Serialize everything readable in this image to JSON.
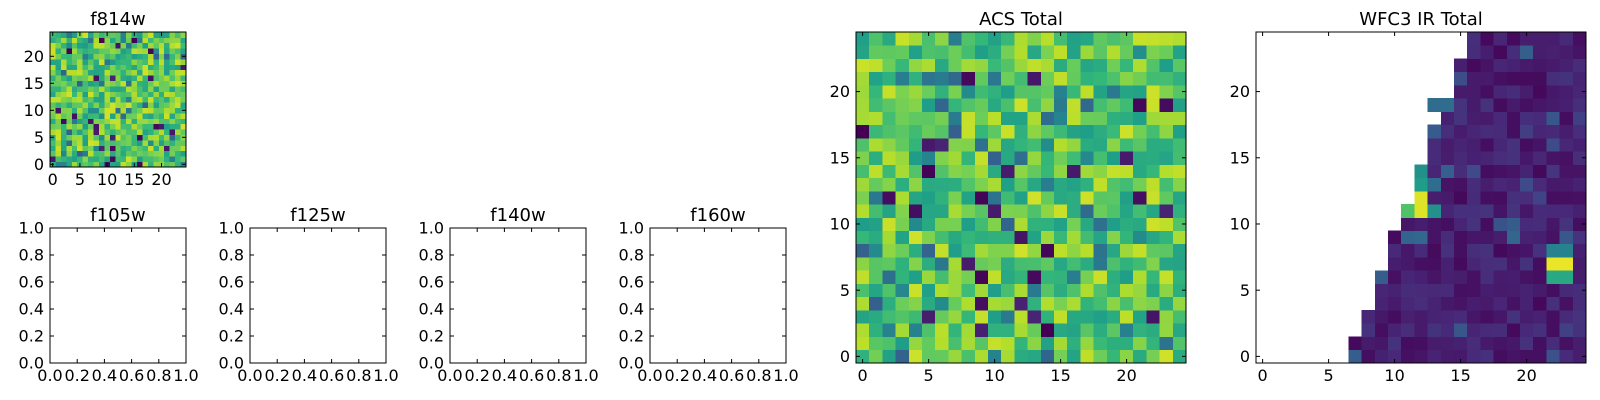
{
  "colors": {
    "axis": "#000000",
    "background": "#ffffff",
    "colormap": "viridis"
  },
  "chart_data": [
    {
      "id": "f814w",
      "type": "heatmap",
      "title": "f814w",
      "xlabel": "",
      "ylabel": "",
      "grid_size": [
        25,
        25
      ],
      "xlim": [
        -0.5,
        24.5
      ],
      "ylim": [
        -0.5,
        24.5
      ],
      "xticks": [
        0,
        5,
        10,
        15,
        20
      ],
      "yticks": [
        0,
        5,
        10,
        15,
        20
      ],
      "value_range": [
        0.0,
        1.0
      ],
      "seed": 11,
      "values": "noisy field, mostly 0.55-0.9 (green-yellow), occasional low-value dark pixels"
    },
    {
      "id": "f105w",
      "type": "empty",
      "title": "f105w",
      "xlim": [
        0,
        1
      ],
      "ylim": [
        0,
        1
      ],
      "xticks": [
        "0.0",
        "0.2",
        "0.4",
        "0.6",
        "0.8",
        "1.0"
      ],
      "yticks": [
        "0.0",
        "0.2",
        "0.4",
        "0.6",
        "0.8",
        "1.0"
      ]
    },
    {
      "id": "f125w",
      "type": "empty",
      "title": "f125w",
      "xlim": [
        0,
        1
      ],
      "ylim": [
        0,
        1
      ],
      "xticks": [
        "0.0",
        "0.2",
        "0.4",
        "0.6",
        "0.8",
        "1.0"
      ],
      "yticks": [
        "0.0",
        "0.2",
        "0.4",
        "0.6",
        "0.8",
        "1.0"
      ]
    },
    {
      "id": "f140w",
      "type": "empty",
      "title": "f140w",
      "xlim": [
        0,
        1
      ],
      "ylim": [
        0,
        1
      ],
      "xticks": [
        "0.0",
        "0.2",
        "0.4",
        "0.6",
        "0.8",
        "1.0"
      ],
      "yticks": [
        "0.0",
        "0.2",
        "0.4",
        "0.6",
        "0.8",
        "1.0"
      ]
    },
    {
      "id": "f160w",
      "type": "empty",
      "title": "f160w",
      "xlim": [
        0,
        1
      ],
      "ylim": [
        0,
        1
      ],
      "xticks": [
        "0.0",
        "0.2",
        "0.4",
        "0.6",
        "0.8",
        "1.0"
      ],
      "yticks": [
        "0.0",
        "0.2",
        "0.4",
        "0.6",
        "0.8",
        "1.0"
      ]
    },
    {
      "id": "acs-total",
      "type": "heatmap",
      "title": "ACS Total",
      "grid_size": [
        25,
        25
      ],
      "xlim": [
        -0.5,
        24.5
      ],
      "ylim": [
        -0.5,
        24.5
      ],
      "xticks": [
        0,
        5,
        10,
        15,
        20
      ],
      "yticks": [
        0,
        5,
        10,
        15,
        20
      ],
      "value_range": [
        0.0,
        1.0
      ],
      "seed": 7,
      "values": "noisy field, mostly 0.55-0.9 (green-yellow), occasional low-value dark pixels"
    },
    {
      "id": "wfc3-ir-total",
      "type": "heatmap",
      "title": "WFC3 IR Total",
      "grid_size": [
        25,
        25
      ],
      "xlim": [
        -0.5,
        24.5
      ],
      "ylim": [
        -0.5,
        24.5
      ],
      "xticks": [
        0,
        5,
        10,
        15,
        20
      ],
      "yticks": [
        0,
        5,
        10,
        15,
        20
      ],
      "value_range": [
        0.0,
        1.0
      ],
      "seed": 3,
      "values": "NaN (blank) left of a diagonal boundary running from x~7 at y=0 to x~16 at y=24; valid region mostly 0.0-0.15 (dark purple)",
      "hotspots": [
        {
          "x": 12,
          "y": 12,
          "value": 0.95
        },
        {
          "x": 12,
          "y": 11,
          "value": 0.95
        },
        {
          "x": 12,
          "y": 13,
          "value": 0.55
        },
        {
          "x": 12,
          "y": 14,
          "value": 0.5
        },
        {
          "x": 13,
          "y": 11,
          "value": 0.5
        },
        {
          "x": 11,
          "y": 11,
          "value": 0.72
        },
        {
          "x": 13,
          "y": 13,
          "value": 0.35
        },
        {
          "x": 23,
          "y": 7,
          "value": 0.97
        },
        {
          "x": 22,
          "y": 7,
          "value": 0.97
        },
        {
          "x": 22,
          "y": 6,
          "value": 0.6
        },
        {
          "x": 23,
          "y": 6,
          "value": 0.6
        },
        {
          "x": 22,
          "y": 8,
          "value": 0.45
        },
        {
          "x": 23,
          "y": 8,
          "value": 0.45
        },
        {
          "x": 13,
          "y": 19,
          "value": 0.35
        },
        {
          "x": 14,
          "y": 19,
          "value": 0.35
        }
      ]
    }
  ]
}
